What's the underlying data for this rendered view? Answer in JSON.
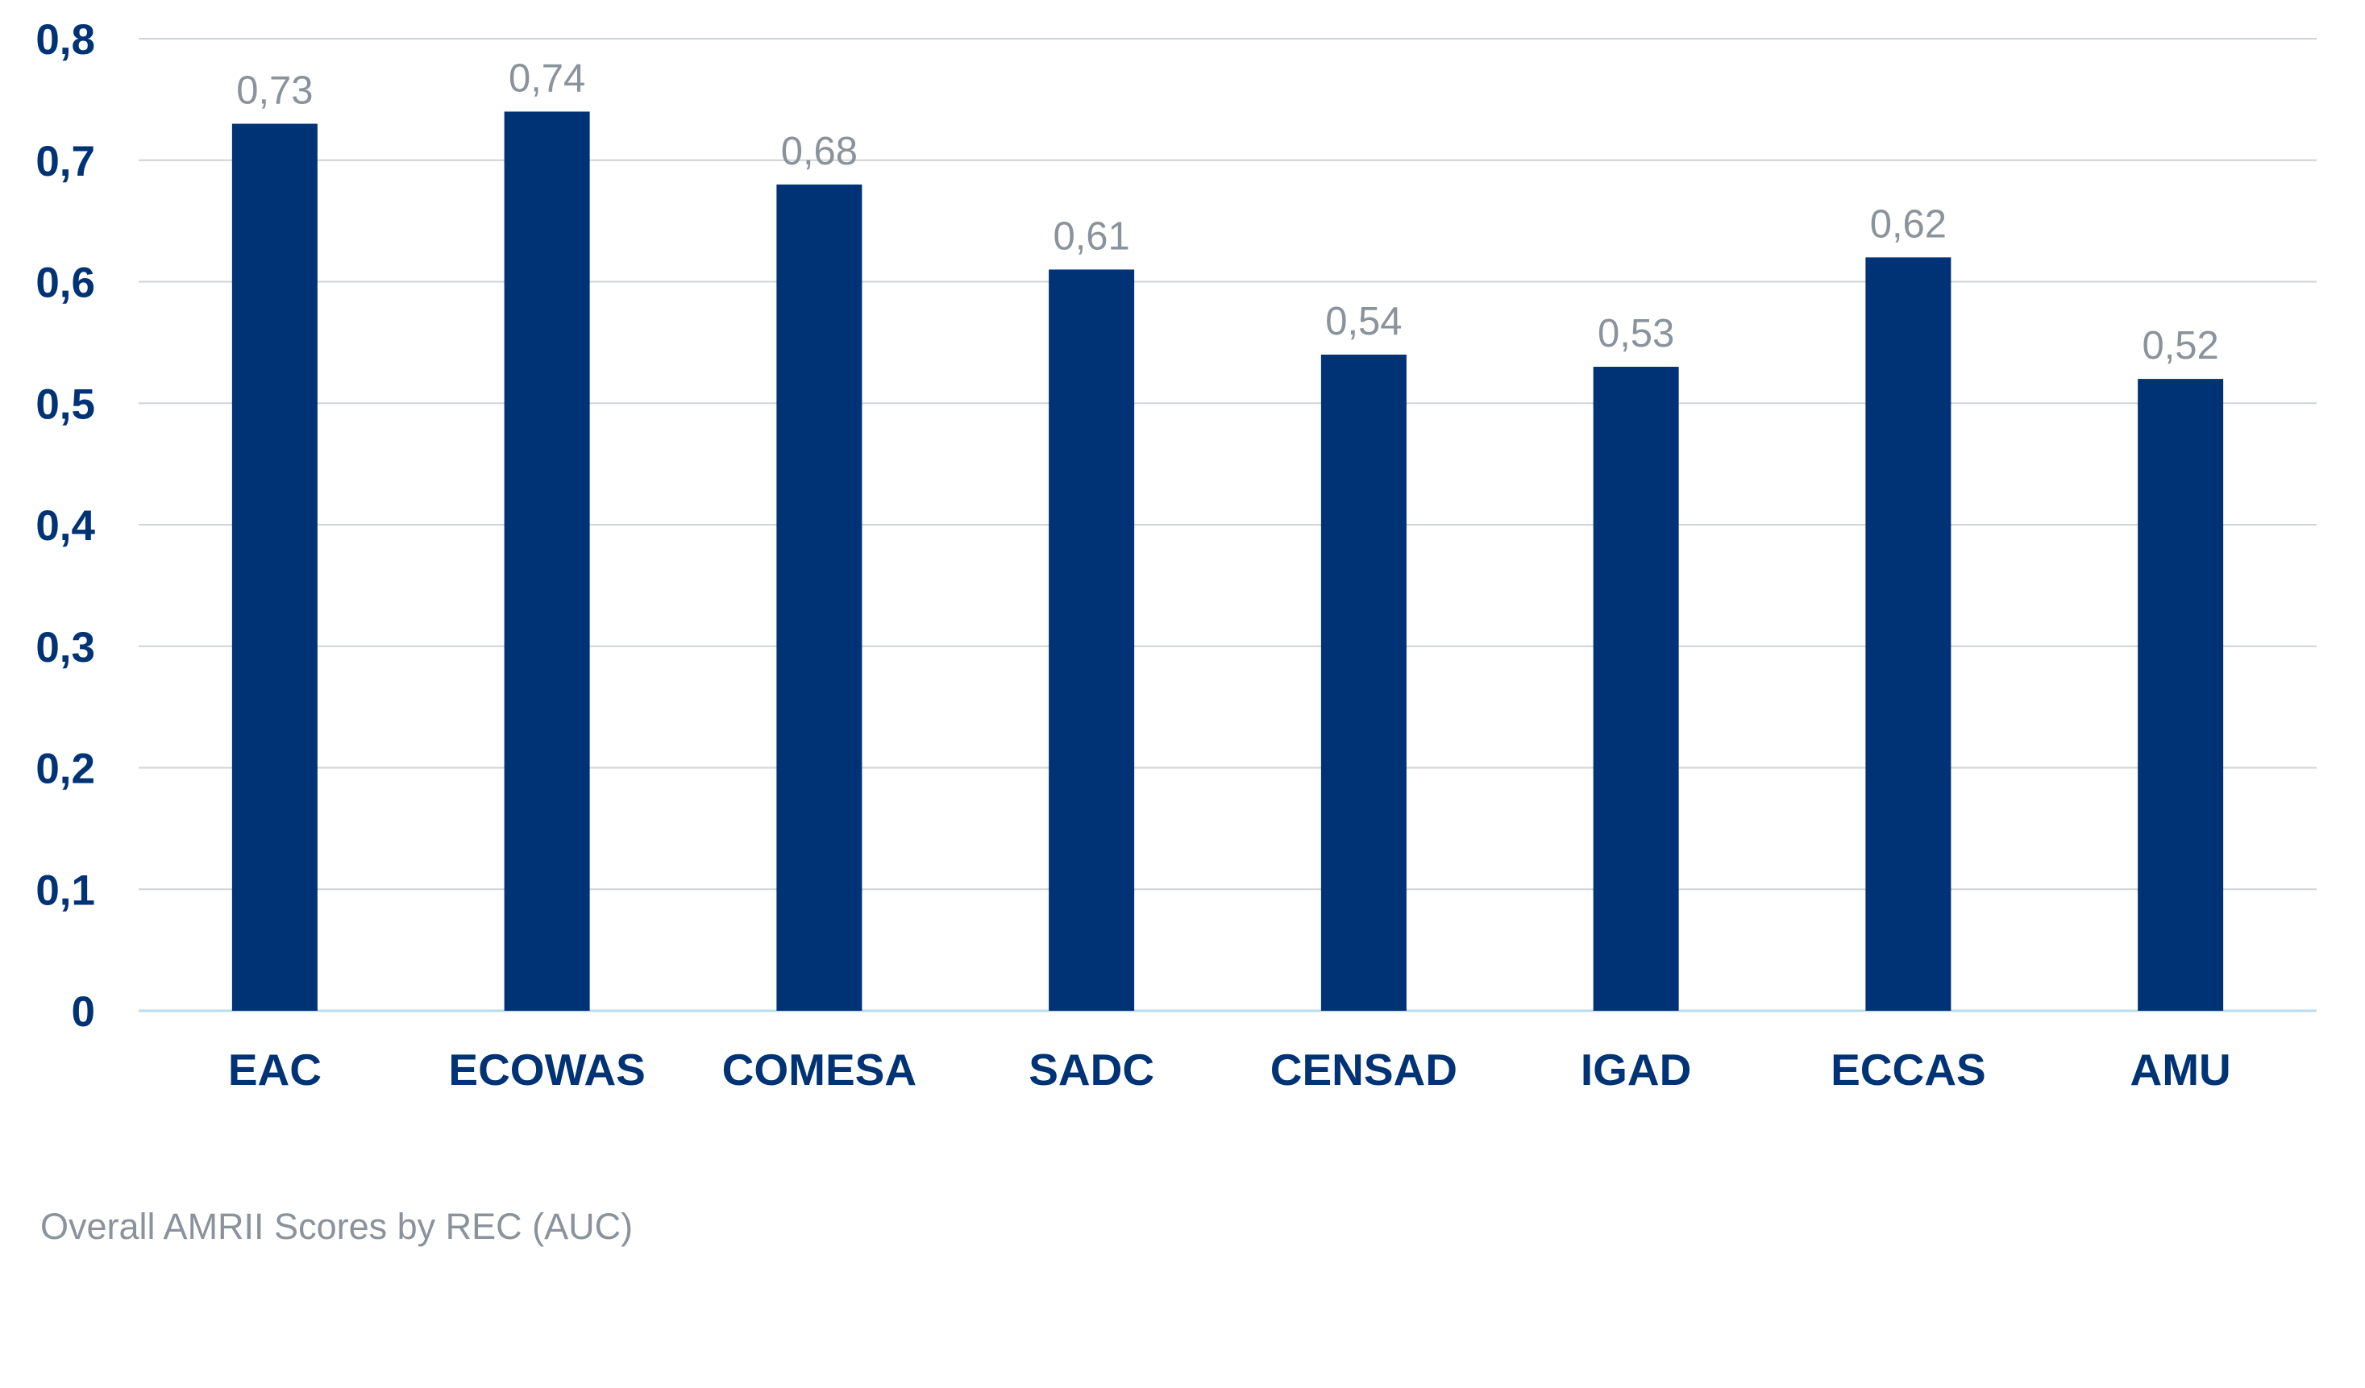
{
  "caption": "Overall AMRII Scores by REC (AUC)",
  "colors": {
    "bar": "#003375",
    "axis_text": "#003375",
    "data_label": "#8a929c",
    "caption": "#8a929c",
    "grid": "#d0d3d6",
    "baseline": "#b9dced"
  },
  "chart_data": {
    "type": "bar",
    "categories": [
      "EAC",
      "ECOWAS",
      "COMESA",
      "SADC",
      "CENSAD",
      "IGAD",
      "ECCAS",
      "AMU"
    ],
    "values": [
      0.73,
      0.74,
      0.68,
      0.61,
      0.54,
      0.53,
      0.62,
      0.52
    ],
    "value_labels": [
      "0,73",
      "0,74",
      "0,68",
      "0,61",
      "0,54",
      "0,53",
      "0,62",
      "0,52"
    ],
    "yticks": [
      0,
      0.1,
      0.2,
      0.3,
      0.4,
      0.5,
      0.6,
      0.7,
      0.8
    ],
    "ytick_labels": [
      "0",
      "0,1",
      "0,2",
      "0,3",
      "0,4",
      "0,5",
      "0,6",
      "0,7",
      "0,8"
    ],
    "ylim": [
      0,
      0.8
    ],
    "grid": true,
    "legend": "none",
    "title": "",
    "xlabel": "",
    "ylabel": ""
  }
}
